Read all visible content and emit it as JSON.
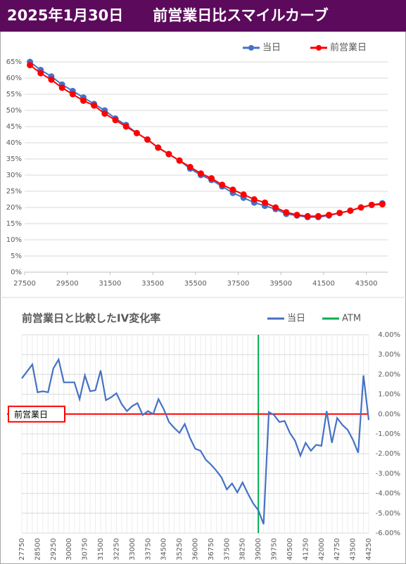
{
  "header": {
    "title": "2025年1月30日　　前営業日比スマイルカーブ"
  },
  "chart_data": [
    {
      "type": "line",
      "markers": true,
      "legend": "top-right",
      "grid": true,
      "x": [
        27750,
        28250,
        28750,
        29250,
        29750,
        30250,
        30750,
        31250,
        31750,
        32250,
        32750,
        33250,
        33750,
        34250,
        34750,
        35250,
        35750,
        36250,
        36750,
        37250,
        37750,
        38250,
        38750,
        39250,
        39750,
        40250,
        40750,
        41250,
        41750,
        42250,
        42750,
        43250,
        43750,
        44250
      ],
      "series": [
        {
          "name": "当日",
          "color": "#4472c4",
          "values": [
            65,
            62.5,
            60.5,
            58,
            56,
            54,
            52,
            50,
            47.5,
            45.5,
            43,
            41,
            38.5,
            36.5,
            34.5,
            32,
            30,
            28.5,
            26.5,
            24.5,
            23,
            21.5,
            20.5,
            19.5,
            18,
            17.5,
            17,
            17,
            17.5,
            18.3,
            19,
            20,
            20.8,
            21.3
          ]
        },
        {
          "name": "前営業日",
          "color": "#ff0000",
          "values": [
            64,
            61.5,
            59.5,
            57,
            55,
            53,
            51.5,
            49,
            47,
            45,
            43,
            41,
            38.5,
            36.5,
            34.5,
            32.5,
            30.5,
            29,
            27,
            25.5,
            24,
            22.5,
            21.5,
            20,
            18.5,
            17.7,
            17.3,
            17.3,
            17.7,
            18.3,
            19,
            20,
            20.8,
            21
          ]
        }
      ],
      "xlim": [
        27500,
        44500
      ],
      "xticks": [
        27500,
        29500,
        31500,
        33500,
        35500,
        37500,
        39500,
        41500,
        43500
      ],
      "ylim": [
        0,
        65
      ],
      "yticks": [
        {
          "value": 0,
          "label": "0%"
        },
        {
          "value": 5,
          "label": "5%"
        },
        {
          "value": 10,
          "label": "10%"
        },
        {
          "value": 15,
          "label": "15%"
        },
        {
          "value": 20,
          "label": "20%"
        },
        {
          "value": 25,
          "label": "25%"
        },
        {
          "value": 30,
          "label": "30%"
        },
        {
          "value": 35,
          "label": "35%"
        },
        {
          "value": 40,
          "label": "40%"
        },
        {
          "value": 45,
          "label": "45%"
        },
        {
          "value": 50,
          "label": "50%"
        },
        {
          "value": 55,
          "label": "55%"
        },
        {
          "value": 60,
          "label": "60%"
        },
        {
          "value": 65,
          "label": "65%"
        }
      ]
    },
    {
      "type": "line",
      "title": "前営業日と比較したIV変化率",
      "grid": true,
      "y_axis_side": "right",
      "legend": "top-right",
      "categories": [
        27750,
        null,
        null,
        28500,
        null,
        null,
        29250,
        null,
        null,
        30000,
        null,
        null,
        30750,
        null,
        null,
        31500,
        null,
        null,
        32250,
        null,
        null,
        33000,
        null,
        null,
        33750,
        null,
        null,
        34500,
        null,
        null,
        35250,
        null,
        null,
        36000,
        null,
        null,
        36750,
        null,
        null,
        37500,
        null,
        null,
        38250,
        null,
        null,
        39000,
        null,
        null,
        39750,
        null,
        null,
        40500,
        null,
        null,
        41250,
        null,
        null,
        42000,
        null,
        null,
        42750,
        null,
        null,
        43500,
        null,
        null,
        44250
      ],
      "series": [
        {
          "name": "当日",
          "color": "#4472c4",
          "values": [
            1.8,
            2.15,
            2.5,
            1.1,
            1.15,
            1.1,
            2.3,
            2.75,
            1.6,
            1.6,
            1.6,
            0.75,
            1.95,
            1.15,
            1.2,
            2.2,
            0.7,
            0.85,
            1.05,
            0.5,
            0.15,
            0.4,
            0.55,
            -0.05,
            0.15,
            0,
            0.75,
            0.25,
            -0.4,
            -0.7,
            -0.95,
            -0.5,
            -1.2,
            -1.75,
            -1.85,
            -2.3,
            -2.55,
            -2.85,
            -3.2,
            -3.8,
            -3.5,
            -3.95,
            -3.45,
            -4.0,
            -4.5,
            -4.85,
            -5.55,
            0.1,
            -0.05,
            -0.4,
            -0.35,
            -0.95,
            -1.35,
            -2.1,
            -1.45,
            -1.85,
            -1.55,
            -1.6,
            0.15,
            -1.45,
            -0.2,
            -0.55,
            -0.8,
            -1.3,
            -1.95,
            1.95,
            -0.3
          ]
        }
      ],
      "reference_lines": [
        {
          "name": "ATM",
          "color": "#00b050",
          "x": 39000
        },
        {
          "name": "前営業日",
          "color": "#ff0000",
          "y": 0
        }
      ],
      "ylim": [
        -6,
        4
      ],
      "yticks": [
        {
          "value": 4,
          "label": "4.00%"
        },
        {
          "value": 3,
          "label": "3.00%"
        },
        {
          "value": 2,
          "label": "2.00%"
        },
        {
          "value": 1,
          "label": "1.00%"
        },
        {
          "value": 0,
          "label": "0.00%"
        },
        {
          "value": -1,
          "label": "-1.00%"
        },
        {
          "value": -2,
          "label": "-2.00%"
        },
        {
          "value": -3,
          "label": "-3.00%"
        },
        {
          "value": -4,
          "label": "-4.00%"
        },
        {
          "value": -5,
          "label": "-5.00%"
        },
        {
          "value": -6,
          "label": "-6.00%"
        }
      ]
    }
  ]
}
